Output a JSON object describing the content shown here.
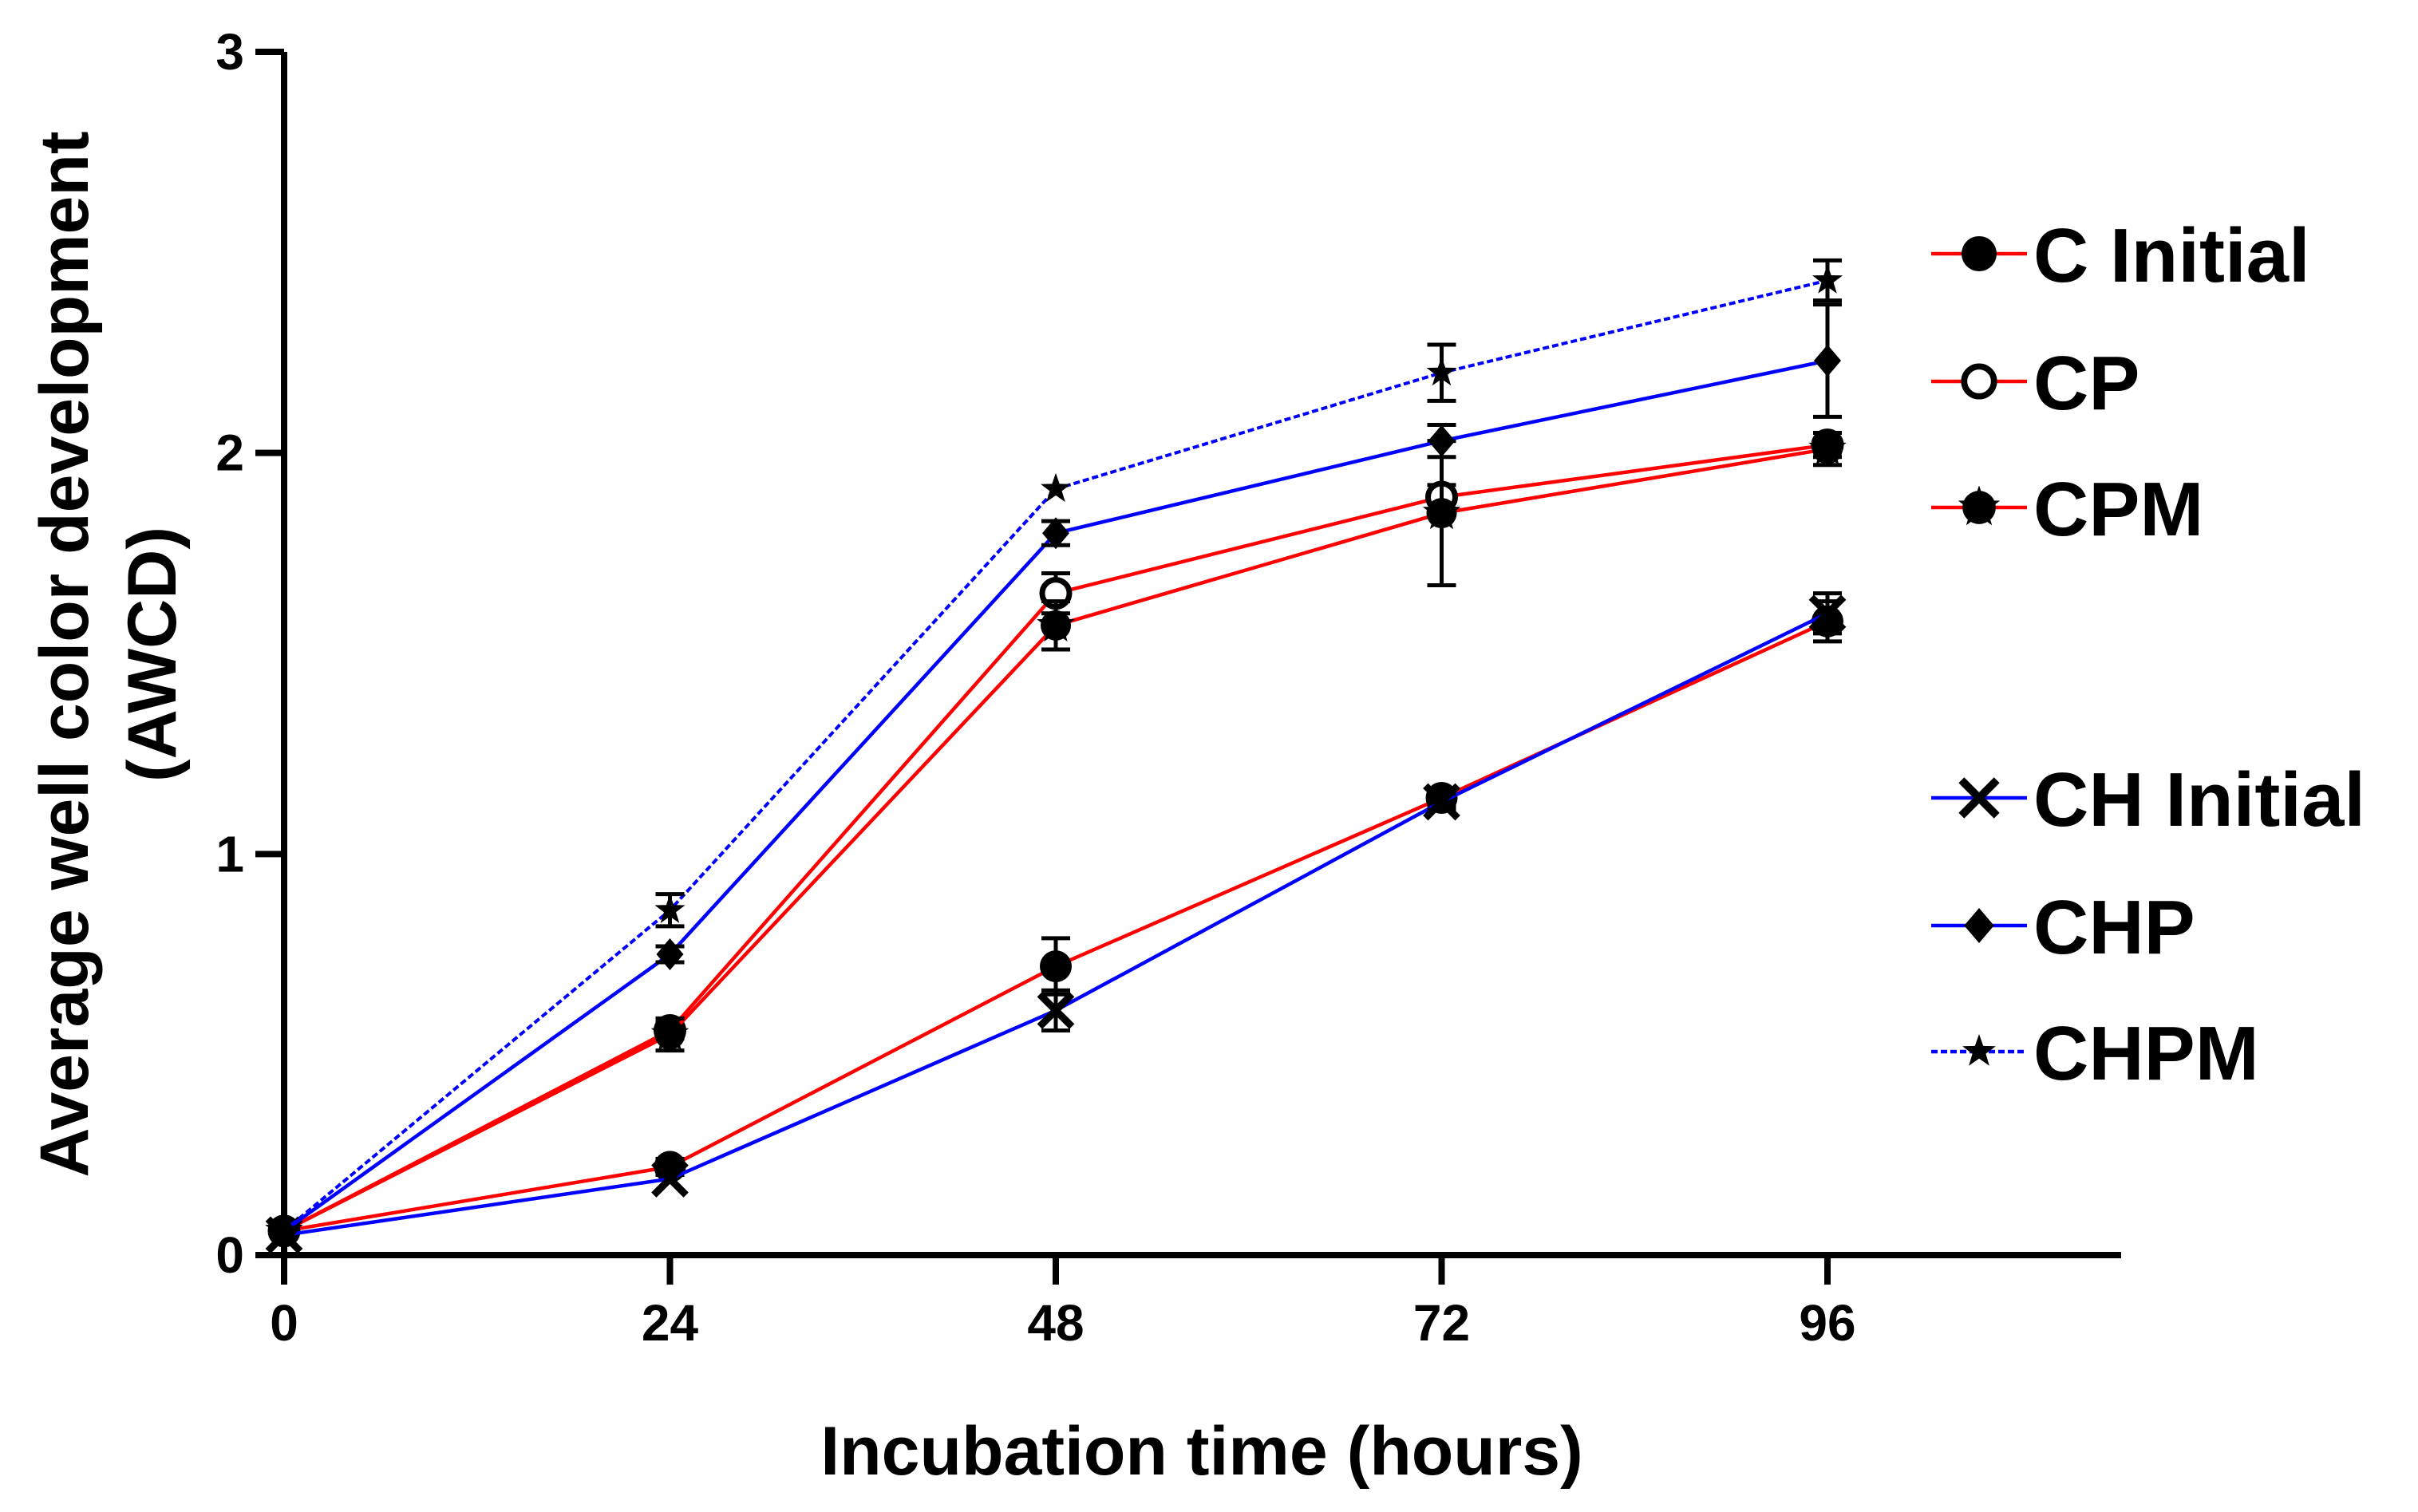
{
  "chart_data": {
    "type": "line",
    "title": "",
    "xlabel": "Incubation time (hours)",
    "ylabel_line1": "Average well color development",
    "ylabel_line2": "(AWCD)",
    "x": [
      0,
      24,
      48,
      72,
      96
    ],
    "xticks": [
      "0",
      "24",
      "48",
      "72",
      "96"
    ],
    "yticks": [
      "0",
      "1",
      "2",
      "3"
    ],
    "xlim": [
      0,
      114
    ],
    "ylim": [
      0,
      3
    ],
    "grid": false,
    "legend_position": "right",
    "colors": {
      "red": "#ff0000",
      "blue": "#0000ff",
      "marker": "#000000"
    },
    "series": [
      {
        "name": "C Initial",
        "line_color": "#ff0000",
        "marker": "circle-filled",
        "dashed": false,
        "values": [
          0.06,
          0.22,
          0.72,
          1.14,
          1.58
        ],
        "errors": [
          0.01,
          0.02,
          0.07,
          0.02,
          0.05
        ]
      },
      {
        "name": "CP",
        "line_color": "#ff0000",
        "marker": "circle-open",
        "dashed": false,
        "values": [
          0.06,
          0.56,
          1.65,
          1.89,
          2.02
        ],
        "errors": [
          0.01,
          0.02,
          0.05,
          0.03,
          0.03
        ]
      },
      {
        "name": "CPM",
        "line_color": "#ff0000",
        "marker": "circle-star",
        "dashed": false,
        "values": [
          0.06,
          0.55,
          1.57,
          1.85,
          2.01
        ],
        "errors": [
          0.01,
          0.04,
          0.06,
          0.18,
          0.04
        ]
      },
      {
        "name": "CH Initial",
        "line_color": "#0000ff",
        "marker": "x",
        "dashed": false,
        "values": [
          0.05,
          0.19,
          0.61,
          1.13,
          1.6
        ],
        "errors": [
          0.01,
          0.01,
          0.05,
          0.02,
          0.05
        ]
      },
      {
        "name": "CHP",
        "line_color": "#0000ff",
        "marker": "diamond",
        "dashed": false,
        "values": [
          0.06,
          0.75,
          1.8,
          2.03,
          2.23
        ],
        "errors": [
          0.01,
          0.02,
          0.03,
          0.04,
          0.14
        ]
      },
      {
        "name": "CHPM",
        "line_color": "#0000ff",
        "marker": "star",
        "dashed": true,
        "values": [
          0.06,
          0.86,
          1.91,
          2.2,
          2.43
        ],
        "errors": [
          0.01,
          0.04,
          0.01,
          0.07,
          0.05
        ]
      }
    ]
  }
}
